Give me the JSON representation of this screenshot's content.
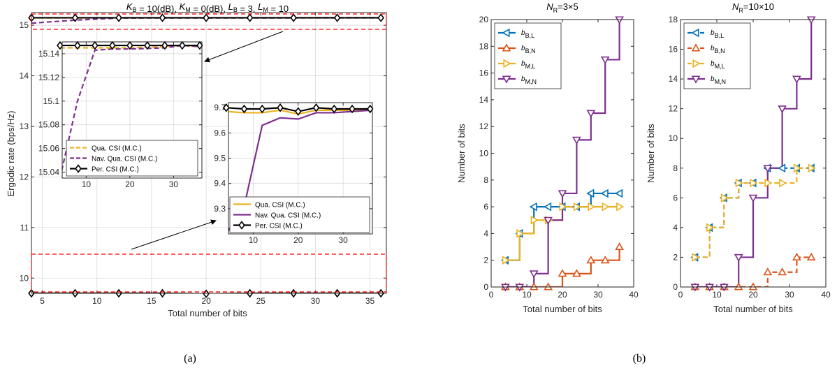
{
  "colors": {
    "blue": "#0072BD",
    "orange": "#D95319",
    "yellow": "#EDB120",
    "purple": "#7E2F8E",
    "black": "#000000",
    "red_dash": "#FF0000",
    "arrow": "#000000"
  },
  "panel_a": {
    "title": "K_B = 10(dB),  K_M = 0(dB),  L_B = 3,  L_M = 10",
    "title_parts": [
      {
        "base": "K",
        "sub": "B",
        "rest": " = 10(dB),  "
      },
      {
        "base": "K",
        "sub": "M",
        "rest": " = 0(dB),  "
      },
      {
        "base": "L",
        "sub": "B",
        "rest": " = 3,  "
      },
      {
        "base": "L",
        "sub": "M",
        "rest": " = 10"
      }
    ],
    "xlabel": "Total number of bits",
    "ylabel": "Ergodic rate (bps/Hz)",
    "caption": "(a)"
  },
  "panel_b": {
    "caption": "(b)"
  },
  "chart_data": [
    {
      "id": "main",
      "type": "line",
      "xlim": [
        4,
        36.5
      ],
      "ylim": [
        9.7,
        15.25
      ],
      "xticks": [
        5,
        10,
        15,
        20,
        25,
        30,
        35
      ],
      "yticks": [
        10,
        11,
        12,
        13,
        14,
        15
      ],
      "grid": true,
      "x": [
        4,
        8,
        12,
        16,
        20,
        24,
        28,
        32,
        36
      ],
      "series": [
        {
          "name": "Qua. CSI (M.C.)",
          "color": "yellow",
          "style": "solid",
          "marker": "none",
          "values": [
            9.68,
            9.675,
            9.68,
            9.69,
            9.68,
            9.685,
            9.69,
            9.69,
            9.69
          ]
        },
        {
          "name": "Nav. Qua. CSI (M.C.)",
          "color": "purple",
          "style": "solid",
          "marker": "none",
          "values": [
            9.22,
            9.29,
            9.64,
            9.66,
            9.66,
            9.68,
            9.68,
            9.685,
            9.69
          ]
        },
        {
          "name": "Per. CSI (M.C.)",
          "color": "black",
          "style": "solid",
          "marker": "diamond",
          "values": [
            9.7,
            9.7,
            9.7,
            9.7,
            9.69,
            9.7,
            9.7,
            9.7,
            9.7
          ]
        },
        {
          "name": "Qua. CSI (M.C.)",
          "color": "yellow",
          "style": "dash",
          "marker": "none",
          "values": [
            15.145,
            15.145,
            15.145,
            15.145,
            15.145,
            15.146,
            15.146,
            15.147,
            15.146
          ]
        },
        {
          "name": "Nav. Qua. CSI (M.C.)",
          "color": "purple",
          "style": "dash",
          "marker": "none",
          "values": [
            15.04,
            15.1,
            15.143,
            15.144,
            15.144,
            15.145,
            15.145,
            15.147,
            15.146
          ]
        },
        {
          "name": "Per. CSI (M.C.)",
          "color": "black",
          "style": "solid",
          "marker": "diamond",
          "values": [
            15.147,
            15.147,
            15.147,
            15.147,
            15.147,
            15.147,
            15.147,
            15.147,
            15.147
          ]
        }
      ]
    },
    {
      "id": "inset_upper",
      "type": "line",
      "xlim": [
        4.5,
        36.5
      ],
      "ylim": [
        15.035,
        15.15
      ],
      "xticks": [
        10,
        20,
        30
      ],
      "yticks": [
        15.04,
        15.06,
        15.08,
        15.1,
        15.12,
        15.14
      ],
      "ytick_labels": [
        "15.04",
        "15.06",
        "15.08",
        "15.1",
        "15.12",
        "15.14"
      ],
      "grid": true,
      "x": [
        4,
        8,
        12,
        16,
        20,
        24,
        28,
        32,
        36
      ],
      "legend": [
        "Qua. CSI (M.C.)",
        "Nav. Qua. CSI (M.C.)",
        "Per. CSI (M.C.)"
      ],
      "series": [
        {
          "name": "Qua. CSI (M.C.)",
          "color": "yellow",
          "style": "dash",
          "marker": "none",
          "values": [
            15.145,
            15.145,
            15.145,
            15.145,
            15.145,
            15.1455,
            15.146,
            15.147,
            15.146
          ]
        },
        {
          "name": "Nav. Qua. CSI (M.C.)",
          "color": "purple",
          "style": "dash",
          "marker": "none",
          "values": [
            15.035,
            15.1,
            15.143,
            15.144,
            15.144,
            15.1445,
            15.145,
            15.147,
            15.146
          ]
        },
        {
          "name": "Per. CSI (M.C.)",
          "color": "black",
          "style": "solid",
          "marker": "diamond",
          "values": [
            15.147,
            15.147,
            15.147,
            15.147,
            15.147,
            15.147,
            15.147,
            15.147,
            15.147
          ]
        }
      ]
    },
    {
      "id": "inset_lower",
      "type": "line",
      "xlim": [
        4.5,
        36.5
      ],
      "ylim": [
        9.2,
        9.72
      ],
      "xticks": [
        10,
        20,
        30
      ],
      "yticks": [
        9.3,
        9.4,
        9.5,
        9.6,
        9.7
      ],
      "ytick_labels": [
        "9.3",
        "9.4",
        "9.5",
        "9.6",
        "9.7"
      ],
      "grid": true,
      "x": [
        4,
        8,
        12,
        16,
        20,
        24,
        28,
        32,
        36
      ],
      "legend": [
        "Qua. CSI (M.C.)",
        "Nav. Qua. CSI (M.C.)",
        "Per. CSI (M.C.)"
      ],
      "series": [
        {
          "name": "Qua. CSI (M.C.)",
          "color": "yellow",
          "style": "solid",
          "marker": "none",
          "values": [
            9.685,
            9.68,
            9.68,
            9.69,
            9.675,
            9.69,
            9.69,
            9.69,
            9.69
          ]
        },
        {
          "name": "Nav. Qua. CSI (M.C.)",
          "color": "purple",
          "style": "solid",
          "marker": "none",
          "values": [
            9.2,
            9.31,
            9.63,
            9.66,
            9.655,
            9.68,
            9.68,
            9.685,
            9.69
          ]
        },
        {
          "name": "Per. CSI (M.C.)",
          "color": "black",
          "style": "solid",
          "marker": "diamond",
          "values": [
            9.7,
            9.695,
            9.695,
            9.7,
            9.685,
            9.7,
            9.695,
            9.695,
            9.695
          ]
        }
      ]
    },
    {
      "id": "b_left",
      "type": "line",
      "title_base": "N",
      "title_sub": "R",
      "title_rest": "=3×5",
      "xlabel": "Total number of bits",
      "ylabel": "Number of bits",
      "xlim": [
        0,
        40
      ],
      "ylim": [
        0,
        20
      ],
      "xticks": [
        0,
        10,
        20,
        30,
        40
      ],
      "yticks": [
        0,
        2,
        4,
        6,
        8,
        10,
        12,
        14,
        16,
        18,
        20
      ],
      "grid": false,
      "x": [
        4,
        8,
        12,
        16,
        20,
        24,
        28,
        32,
        36
      ],
      "series": [
        {
          "name": "b_{B,L}",
          "label_base": "b",
          "label_sub": "B,L",
          "color": "blue",
          "style": "solid",
          "marker": "triangle-left",
          "values": [
            2,
            4,
            6,
            6,
            6,
            6,
            7,
            7,
            7
          ]
        },
        {
          "name": "b_{B,N}",
          "label_base": "b",
          "label_sub": "B,N",
          "color": "orange",
          "style": "solid",
          "marker": "triangle-up",
          "values": [
            0,
            0,
            0,
            0,
            1,
            1,
            2,
            2,
            3
          ]
        },
        {
          "name": "b_{M,L}",
          "label_base": "b",
          "label_sub": "M,L",
          "color": "yellow",
          "style": "solid",
          "marker": "triangle-right",
          "values": [
            2,
            4,
            5,
            5,
            6,
            6,
            6,
            6,
            6
          ]
        },
        {
          "name": "b_{M,N}",
          "label_base": "b",
          "label_sub": "M,N",
          "color": "purple",
          "style": "solid",
          "marker": "triangle-down",
          "values": [
            0,
            0,
            1,
            5,
            7,
            11,
            13,
            17,
            20
          ]
        }
      ]
    },
    {
      "id": "b_right",
      "type": "line",
      "title_base": "N",
      "title_sub": "R",
      "title_rest": "=10×10",
      "xlabel": "Total number of bits",
      "ylabel": "Number of bits",
      "xlim": [
        0,
        40
      ],
      "ylim": [
        0,
        18
      ],
      "xticks": [
        0,
        10,
        20,
        30,
        40
      ],
      "yticks": [
        0,
        2,
        4,
        6,
        8,
        10,
        12,
        14,
        16,
        18
      ],
      "grid": false,
      "x": [
        4,
        8,
        12,
        16,
        20,
        24,
        28,
        32,
        36
      ],
      "series": [
        {
          "name": "b_{B,L}",
          "label_base": "b",
          "label_sub": "B,L",
          "color": "blue",
          "style": "dash",
          "marker": "triangle-left",
          "values": [
            2,
            4,
            6,
            7,
            7,
            8,
            8,
            8,
            8
          ]
        },
        {
          "name": "b_{B,N}",
          "label_base": "b",
          "label_sub": "B,N",
          "color": "orange",
          "style": "dash",
          "marker": "triangle-up",
          "values": [
            0,
            0,
            0,
            0,
            0,
            1,
            1,
            2,
            2
          ]
        },
        {
          "name": "b_{M,L}",
          "label_base": "b",
          "label_sub": "M,L",
          "color": "yellow",
          "style": "dash",
          "marker": "triangle-right",
          "values": [
            2,
            4,
            6,
            7,
            7,
            7,
            7,
            8,
            8
          ]
        },
        {
          "name": "b_{M,N}",
          "label_base": "b",
          "label_sub": "M,N",
          "color": "purple",
          "style": "solid",
          "marker": "triangle-down",
          "values": [
            0,
            0,
            0,
            2,
            6,
            8,
            12,
            14,
            18
          ]
        }
      ]
    }
  ]
}
